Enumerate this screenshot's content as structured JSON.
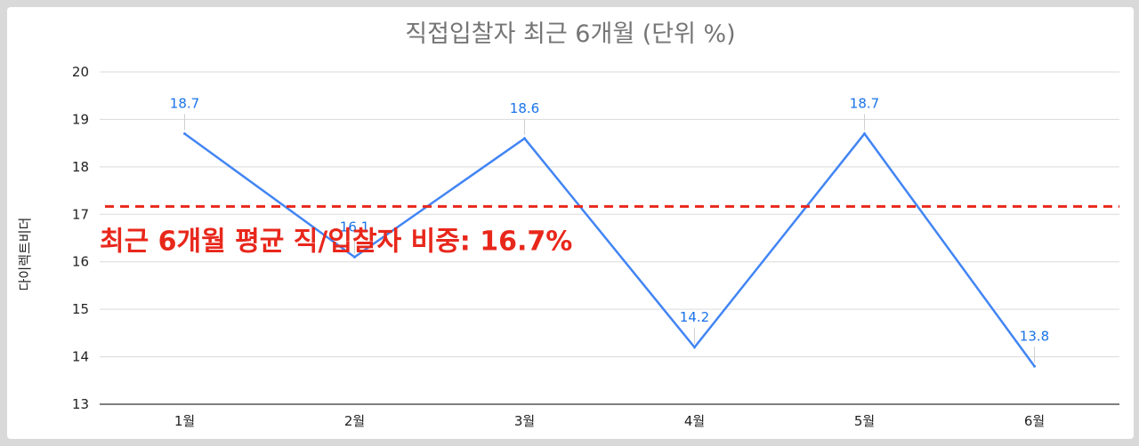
{
  "chart_data": {
    "type": "line",
    "title": "직접입찰자 최근 6개월 (단위 %)",
    "ylabel": "다이렉트비더",
    "xlabel": "",
    "categories": [
      "1월",
      "2월",
      "3월",
      "4월",
      "5월",
      "6월"
    ],
    "series": [
      {
        "values": [
          18.7,
          16.1,
          18.6,
          14.2,
          18.7,
          13.8
        ],
        "color": "#4285f4"
      }
    ],
    "data_labels": [
      "18.7",
      "16.1",
      "18.6",
      "14.2",
      "18.7",
      "13.8"
    ],
    "ylim": [
      13,
      20
    ],
    "yticks": [
      "13",
      "14",
      "15",
      "16",
      "17",
      "18",
      "19",
      "20"
    ],
    "grid": true,
    "legend": "none",
    "reference_line": {
      "value": 16.7,
      "label": "최근 6개월 평균 직/입찰자 비중: 16.7%",
      "color": "#e8271b",
      "style": "dashed"
    }
  }
}
